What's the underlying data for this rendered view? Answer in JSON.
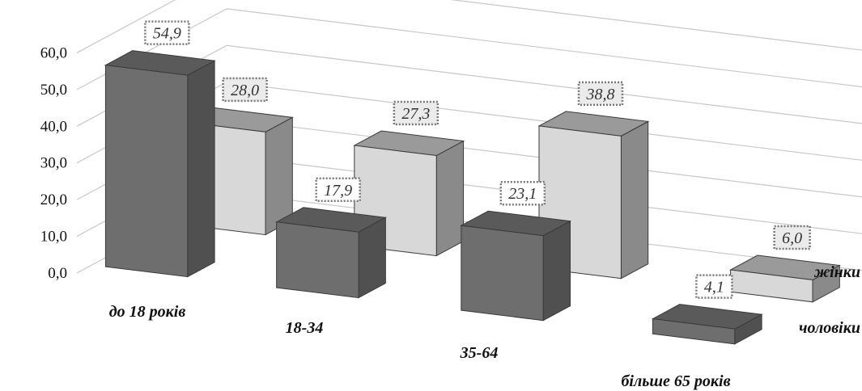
{
  "chart_data": {
    "type": "bar",
    "categories": [
      "до 18 років",
      "18-34",
      "35-64",
      "більше 65 років"
    ],
    "series": [
      {
        "name": "чоловіки",
        "values": [
          54.9,
          17.9,
          23.1,
          4.1
        ]
      },
      {
        "name": "жінки",
        "values": [
          28.0,
          27.3,
          38.8,
          6.0
        ]
      }
    ],
    "value_labels": {
      "чоловіки": [
        "54,9",
        "17,9",
        "23,1",
        "4,1"
      ],
      "жінки": [
        "28,0",
        "27,3",
        "38,8",
        "6,0"
      ]
    },
    "y_ticks": [
      "0,0",
      "10,0",
      "20,0",
      "30,0",
      "40,0",
      "50,0",
      "60,0"
    ],
    "ylim": [
      0,
      70
    ],
    "grid": true,
    "projection": "3d",
    "colors": {
      "чоловіки": "#6e6e6e",
      "жінки": "#d8d8d8",
      "label_fill": "#ebebeb",
      "gridline": "#c8c8c8"
    }
  }
}
